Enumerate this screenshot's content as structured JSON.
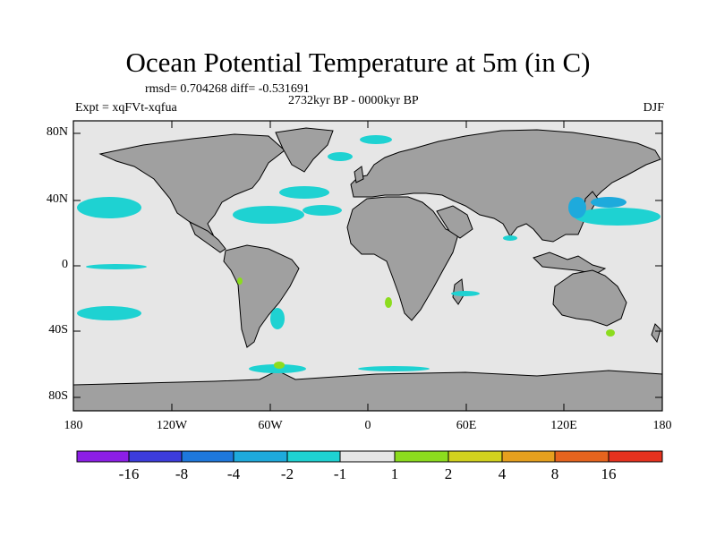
{
  "title": "Ocean Potential Temperature at 5m (in C)",
  "stats_text": "rmsd= 0.704268 diff= -0.531691",
  "period_text": "2732kyr BP - 0000kyr BP",
  "experiment_text": "Expt = xqFVt-xqfua",
  "season_text": "DJF",
  "y_axis_labels": [
    "80N",
    "40N",
    "0",
    "40S",
    "80S"
  ],
  "x_axis_labels": [
    "180",
    "120W",
    "60W",
    "0",
    "60E",
    "120E",
    "180"
  ],
  "colorbar": {
    "labels": [
      "-16",
      "-8",
      "-4",
      "-2",
      "-1",
      "1",
      "2",
      "4",
      "8",
      "16"
    ],
    "colors": [
      "#8c1ee6",
      "#3c3cdc",
      "#1e78dc",
      "#1eaadc",
      "#1ed2d2",
      "#e6e6e6",
      "#8cdc1e",
      "#d2d21e",
      "#e6a01e",
      "#e6641e",
      "#e6321e"
    ]
  },
  "map_colors": {
    "land": "#a0a0a0",
    "ocean": "#e6e6e6",
    "frame": "#000000"
  }
}
